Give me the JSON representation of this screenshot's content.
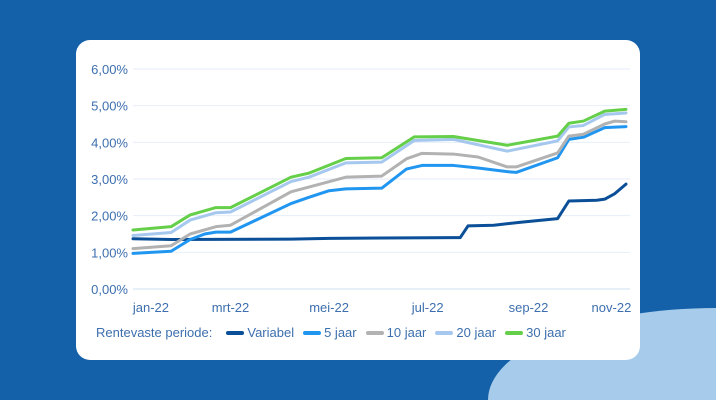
{
  "chart_data": {
    "type": "line",
    "title": "",
    "xlabel": "",
    "ylabel": "",
    "x_unit": "weeks since start of jan-22",
    "xlim": [
      0,
      44
    ],
    "ylim": [
      0,
      6
    ],
    "grid": true,
    "y_ticks": [
      0,
      1,
      2,
      3,
      4,
      5,
      6
    ],
    "y_tick_labels": [
      "0,00%",
      "1,00%",
      "2,00%",
      "3,00%",
      "4,00%",
      "5,00%",
      "6,00%"
    ],
    "x_ticks": [
      {
        "label": "jan-22",
        "x": 1.6
      },
      {
        "label": "mrt-22",
        "x": 8.7
      },
      {
        "label": "mei-22",
        "x": 17.5
      },
      {
        "label": "jul-22",
        "x": 26.3
      },
      {
        "label": "sep-22",
        "x": 35.3
      },
      {
        "label": "nov-22",
        "x": 42.7
      }
    ],
    "legend_title": "Rentevaste periode:",
    "legend_position": "bottom",
    "series": [
      {
        "name": "Variabel",
        "color": "#0a4f97",
        "points": [
          [
            0,
            1.37
          ],
          [
            3.4,
            1.35
          ],
          [
            14.1,
            1.36
          ],
          [
            17.5,
            1.38
          ],
          [
            22.2,
            1.39
          ],
          [
            28.6,
            1.4
          ],
          [
            29.2,
            1.4
          ],
          [
            29.9,
            1.72
          ],
          [
            32.2,
            1.74
          ],
          [
            34.6,
            1.82
          ],
          [
            37.9,
            1.92
          ],
          [
            38.9,
            2.4
          ],
          [
            41.4,
            2.42
          ],
          [
            42.1,
            2.45
          ],
          [
            43,
            2.6
          ],
          [
            44,
            2.86
          ]
        ]
      },
      {
        "name": "5 jaar",
        "color": "#2196f0",
        "points": [
          [
            0,
            0.97
          ],
          [
            3.4,
            1.03
          ],
          [
            5.1,
            1.35
          ],
          [
            6.4,
            1.5
          ],
          [
            7.4,
            1.55
          ],
          [
            8.7,
            1.55
          ],
          [
            14.1,
            2.33
          ],
          [
            15.7,
            2.5
          ],
          [
            17.5,
            2.68
          ],
          [
            19,
            2.73
          ],
          [
            22.2,
            2.75
          ],
          [
            24.4,
            3.27
          ],
          [
            25.8,
            3.37
          ],
          [
            28.6,
            3.37
          ],
          [
            30.8,
            3.3
          ],
          [
            33.4,
            3.2
          ],
          [
            34.2,
            3.18
          ],
          [
            37.9,
            3.58
          ],
          [
            38.9,
            4.08
          ],
          [
            40.2,
            4.14
          ],
          [
            42.1,
            4.4
          ],
          [
            44,
            4.43
          ]
        ]
      },
      {
        "name": "10 jaar",
        "color": "#b2b2b2",
        "points": [
          [
            0,
            1.1
          ],
          [
            3.4,
            1.18
          ],
          [
            5.1,
            1.5
          ],
          [
            7.4,
            1.7
          ],
          [
            8.7,
            1.74
          ],
          [
            14.1,
            2.65
          ],
          [
            15.7,
            2.78
          ],
          [
            19,
            3.05
          ],
          [
            22.2,
            3.08
          ],
          [
            24.4,
            3.55
          ],
          [
            25.8,
            3.7
          ],
          [
            28.6,
            3.68
          ],
          [
            30.8,
            3.6
          ],
          [
            33.4,
            3.33
          ],
          [
            34.2,
            3.33
          ],
          [
            37.9,
            3.71
          ],
          [
            38.9,
            4.17
          ],
          [
            40.2,
            4.22
          ],
          [
            42.1,
            4.5
          ],
          [
            43,
            4.58
          ],
          [
            44,
            4.56
          ]
        ]
      },
      {
        "name": "20 jaar",
        "color": "#a6c8ef",
        "points": [
          [
            0,
            1.46
          ],
          [
            3.4,
            1.54
          ],
          [
            5.1,
            1.88
          ],
          [
            7.4,
            2.08
          ],
          [
            8.7,
            2.1
          ],
          [
            14.1,
            2.93
          ],
          [
            15.7,
            3.05
          ],
          [
            19,
            3.44
          ],
          [
            22.2,
            3.46
          ],
          [
            25.1,
            4.05
          ],
          [
            28.6,
            4.08
          ],
          [
            33.4,
            3.76
          ],
          [
            37.9,
            4.04
          ],
          [
            38.9,
            4.42
          ],
          [
            40.2,
            4.46
          ],
          [
            42.1,
            4.76
          ],
          [
            44,
            4.8
          ]
        ]
      },
      {
        "name": "30 jaar",
        "color": "#66cf4a",
        "points": [
          [
            0,
            1.61
          ],
          [
            3.4,
            1.7
          ],
          [
            5.1,
            2.02
          ],
          [
            7.4,
            2.22
          ],
          [
            8.7,
            2.22
          ],
          [
            14.1,
            3.05
          ],
          [
            15.7,
            3.16
          ],
          [
            19,
            3.56
          ],
          [
            22.2,
            3.58
          ],
          [
            25.1,
            4.15
          ],
          [
            28.6,
            4.16
          ],
          [
            33.4,
            3.92
          ],
          [
            37.9,
            4.17
          ],
          [
            38.9,
            4.52
          ],
          [
            40.2,
            4.58
          ],
          [
            42.1,
            4.85
          ],
          [
            44,
            4.9
          ]
        ]
      }
    ]
  }
}
